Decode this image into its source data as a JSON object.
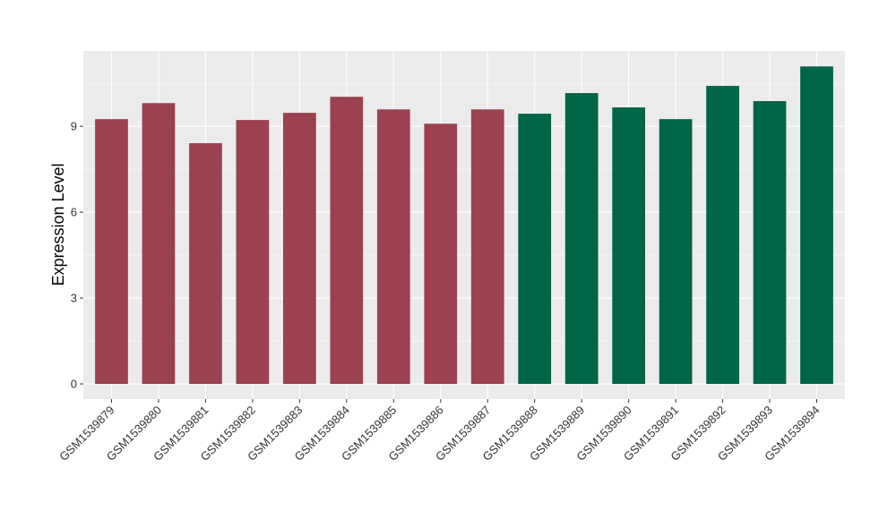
{
  "chart_data": {
    "type": "bar",
    "title": "",
    "xlabel": "",
    "ylabel": "Expression Level",
    "ylim": [
      -0.53,
      11.63
    ],
    "yticks": [
      0,
      3,
      6,
      9
    ],
    "grid": true,
    "categories": [
      "GSM1539879",
      "GSM1539880",
      "GSM1539881",
      "GSM1539882",
      "GSM1539883",
      "GSM1539884",
      "GSM1539885",
      "GSM1539886",
      "GSM1539887",
      "GSM1539888",
      "GSM1539889",
      "GSM1539890",
      "GSM1539891",
      "GSM1539892",
      "GSM1539893",
      "GSM1539894"
    ],
    "values": [
      9.25,
      9.81,
      8.41,
      9.22,
      9.47,
      10.03,
      9.59,
      9.09,
      9.59,
      9.44,
      10.16,
      9.66,
      9.25,
      10.41,
      9.88,
      11.09
    ],
    "bar_colors": [
      "#9b4150",
      "#9b4150",
      "#9b4150",
      "#9b4150",
      "#9b4150",
      "#9b4150",
      "#9b4150",
      "#9b4150",
      "#9b4150",
      "#006647",
      "#006647",
      "#006647",
      "#006647",
      "#006647",
      "#006647",
      "#006647"
    ],
    "panel_background": "#ebebeb"
  }
}
